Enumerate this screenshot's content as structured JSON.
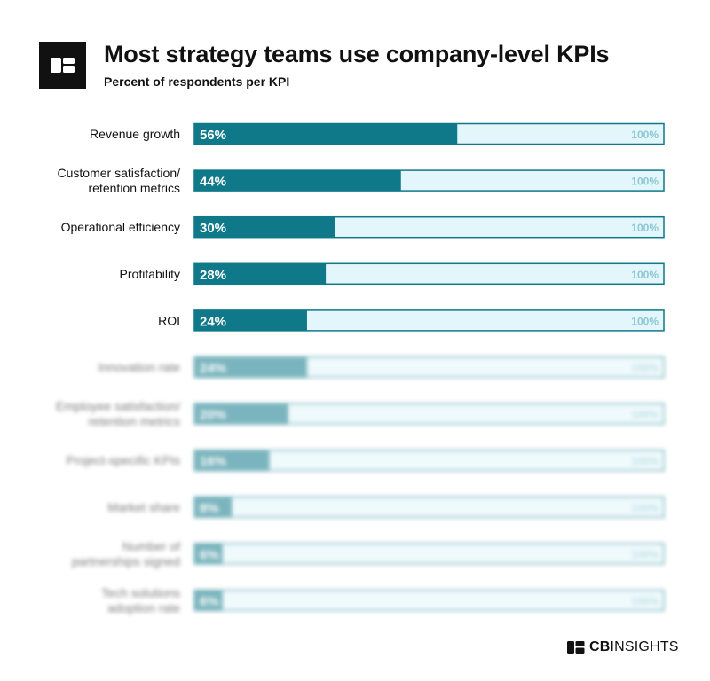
{
  "header": {
    "title": "Most strategy teams use company-level KPIs",
    "subtitle": "Percent of respondents per KPI"
  },
  "footer": {
    "brand_bold": "CB",
    "brand_rest": "INSIGHTS"
  },
  "colors": {
    "bar_fill": "#0f7889",
    "bar_track": "#e3f6fb",
    "bar_border": "#0f7889",
    "track_label": "#8ec9d3",
    "text": "#111111"
  },
  "chart_data": {
    "type": "bar",
    "orientation": "horizontal",
    "title": "Most strategy teams use company-level KPIs",
    "subtitle": "Percent of respondents per KPI",
    "xlim": [
      0,
      100
    ],
    "track_label": "100%",
    "categories": [
      "Revenue growth",
      "Customer satisfaction/\nretention metrics",
      "Operational efficiency",
      "Profitability",
      "ROI",
      "Innovation rate",
      "Employee satisfaction/\nretention metrics",
      "Project-specific KPIs",
      "Market share",
      "Number of\npartnerships signed",
      "Tech solutions\nadoption rate"
    ],
    "values": [
      56,
      44,
      30,
      28,
      24,
      24,
      20,
      16,
      8,
      6,
      6
    ],
    "value_labels": [
      "56%",
      "44%",
      "30%",
      "28%",
      "24%",
      "24%",
      "20%",
      "16%",
      "8%",
      "6%",
      "6%"
    ],
    "obscured": [
      false,
      false,
      false,
      false,
      false,
      true,
      true,
      true,
      true,
      true,
      true
    ]
  }
}
